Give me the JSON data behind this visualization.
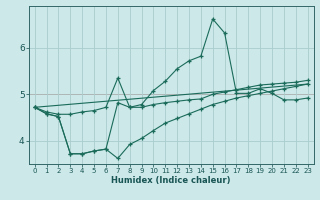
{
  "xlabel": "Humidex (Indice chaleur)",
  "ylabel": "",
  "bg_color": "#cce8e8",
  "grid_color": "#aacccc",
  "line_color": "#1a6b5a",
  "red_line_color": "#cc4444",
  "xlim": [
    -0.5,
    23.5
  ],
  "ylim": [
    3.5,
    6.9
  ],
  "yticks": [
    4,
    5,
    6
  ],
  "xticks": [
    0,
    1,
    2,
    3,
    4,
    5,
    6,
    7,
    8,
    9,
    10,
    11,
    12,
    13,
    14,
    15,
    16,
    17,
    18,
    19,
    20,
    21,
    22,
    23
  ],
  "lines": [
    {
      "x": [
        0,
        1,
        2,
        3,
        4,
        5,
        6,
        7,
        8,
        9,
        10,
        11,
        12,
        13,
        14,
        15,
        16,
        17,
        18,
        19,
        20,
        21,
        22,
        23
      ],
      "y": [
        4.72,
        4.62,
        4.57,
        4.57,
        4.62,
        4.65,
        4.72,
        5.35,
        4.72,
        4.78,
        5.08,
        5.28,
        5.55,
        5.72,
        5.82,
        6.62,
        6.32,
        5.02,
        5.02,
        5.12,
        5.02,
        4.88,
        4.88,
        4.92
      ],
      "marker": "+"
    },
    {
      "x": [
        0,
        1,
        2,
        3,
        4,
        5,
        6,
        7,
        8,
        9,
        10,
        11,
        12,
        13,
        14,
        15,
        16,
        17,
        18,
        19,
        20,
        21,
        22,
        23
      ],
      "y": [
        4.72,
        4.58,
        4.52,
        3.72,
        3.72,
        3.78,
        3.82,
        3.62,
        3.92,
        4.05,
        4.22,
        4.38,
        4.48,
        4.58,
        4.68,
        4.78,
        4.85,
        4.92,
        4.97,
        5.02,
        5.07,
        5.12,
        5.17,
        5.22
      ],
      "marker": "+"
    },
    {
      "x": [
        0,
        1,
        2,
        3,
        4,
        5,
        6,
        7,
        8,
        9,
        10,
        11,
        12,
        13,
        14,
        15,
        16,
        17,
        18,
        19,
        20,
        21,
        22,
        23
      ],
      "y": [
        4.72,
        4.58,
        4.52,
        3.72,
        3.72,
        3.78,
        3.82,
        4.82,
        4.72,
        4.72,
        4.78,
        4.82,
        4.85,
        4.88,
        4.9,
        5.0,
        5.05,
        5.1,
        5.15,
        5.2,
        5.22,
        5.24,
        5.26,
        5.3
      ],
      "marker": "+"
    },
    {
      "x": [
        0,
        23
      ],
      "y": [
        4.72,
        5.22
      ],
      "marker": null
    }
  ]
}
